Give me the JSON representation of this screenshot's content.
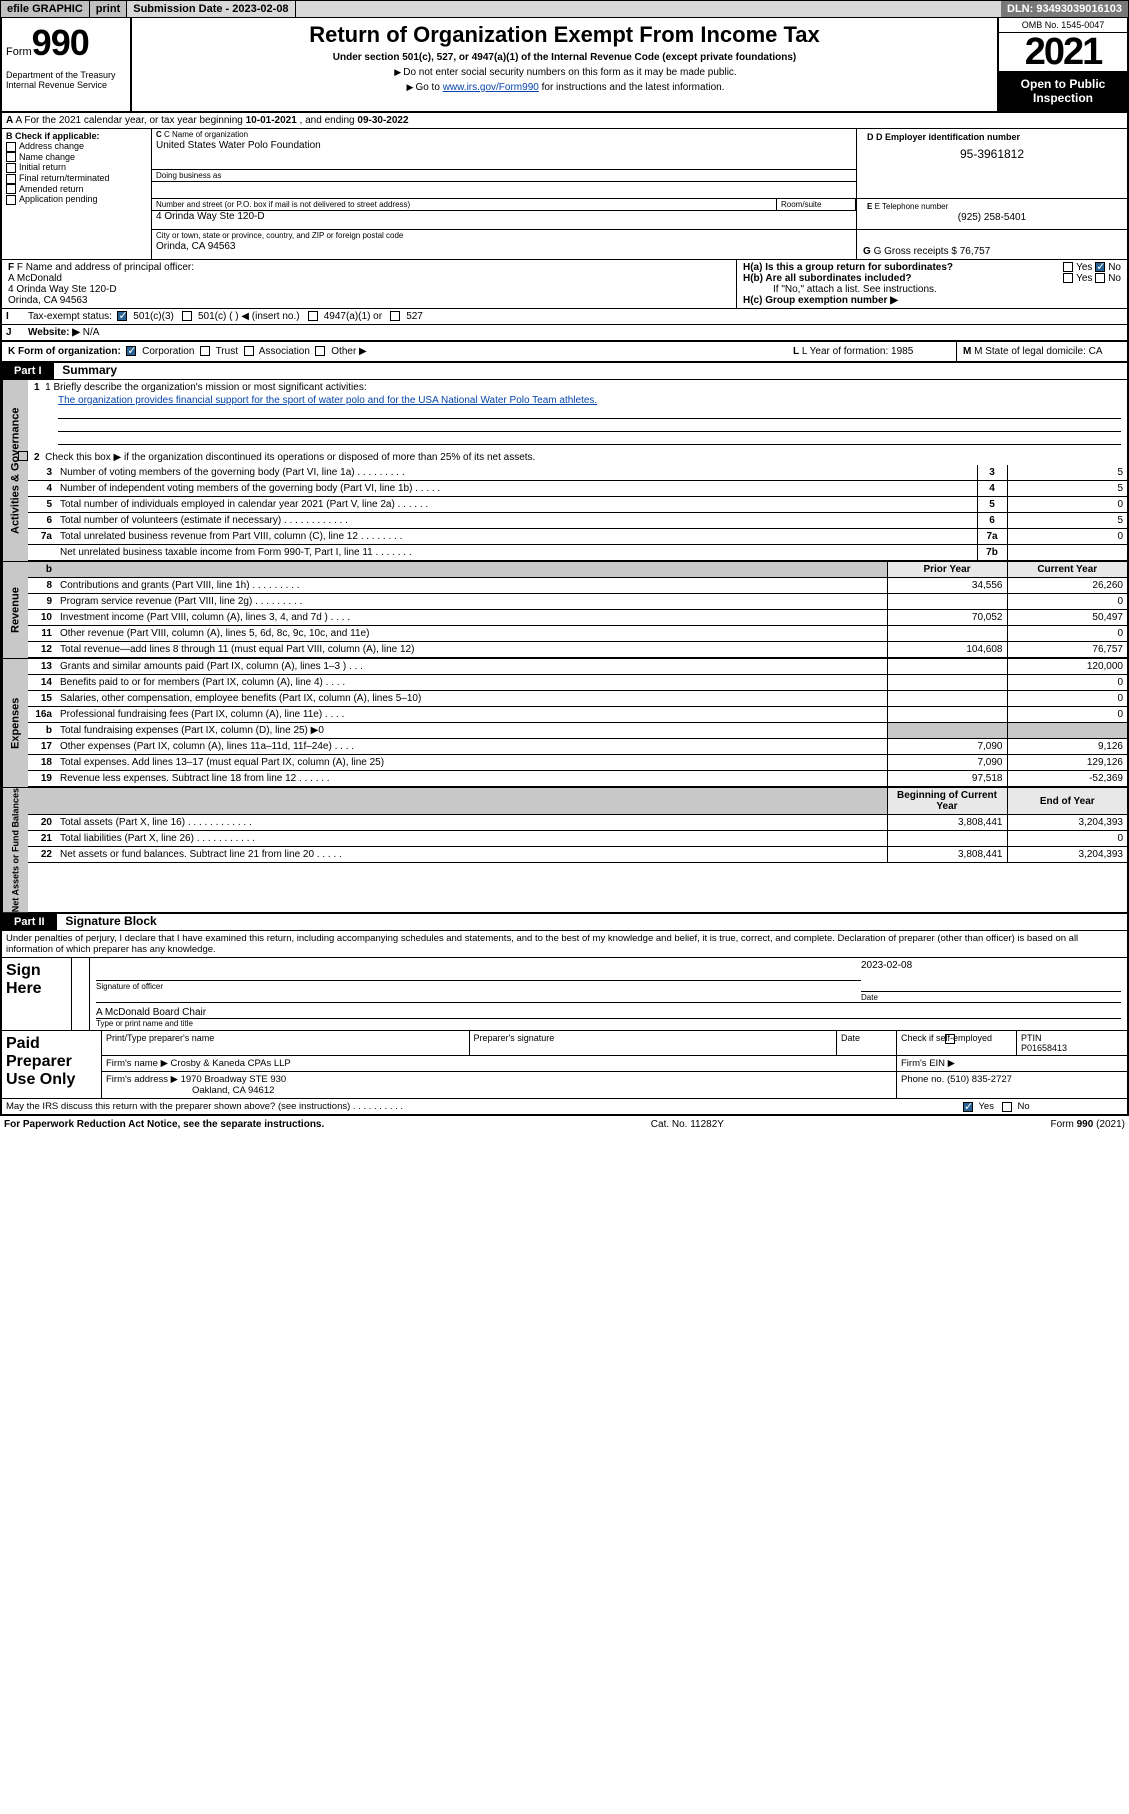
{
  "topbar": {
    "efile": "efile GRAPHIC",
    "print": "print",
    "subdate_label": "Submission Date - ",
    "subdate": "2023-02-08",
    "dln_label": "DLN: ",
    "dln": "93493039016103"
  },
  "header": {
    "form_small": "Form",
    "form_big": "990",
    "dept": "Department of the Treasury\nInternal Revenue Service",
    "title": "Return of Organization Exempt From Income Tax",
    "sub1": "Under section 501(c), 527, or 4947(a)(1) of the Internal Revenue Code (except private foundations)",
    "sub2a": "Do not enter social security numbers on this form as it may be made public.",
    "sub2b_pre": "Go to ",
    "sub2b_link": "www.irs.gov/Form990",
    "sub2b_post": " for instructions and the latest information.",
    "omb": "OMB No. 1545-0047",
    "year": "2021",
    "openpub": "Open to Public Inspection"
  },
  "a": {
    "label_pre": "A For the 2021 calendar year, or tax year beginning ",
    "begin": "10-01-2021",
    "mid": " , and ending ",
    "end": "09-30-2022"
  },
  "b": {
    "label": "B Check if applicable:",
    "items": [
      "Address change",
      "Name change",
      "Initial return",
      "Final return/terminated",
      "Amended return",
      "Application pending"
    ]
  },
  "c": {
    "name_label": "C Name of organization",
    "name": "United States Water Polo Foundation",
    "dba_label": "Doing business as",
    "addr_label": "Number and street (or P.O. box if mail is not delivered to street address)",
    "room_label": "Room/suite",
    "addr": "4 Orinda Way Ste 120-D",
    "city_label": "City or town, state or province, country, and ZIP or foreign postal code",
    "city": "Orinda, CA  94563"
  },
  "d": {
    "label": "D Employer identification number",
    "val": "95-3961812"
  },
  "e": {
    "label": "E Telephone number",
    "val": "(925) 258-5401"
  },
  "g": {
    "label": "G Gross receipts $ ",
    "val": "76,757"
  },
  "f": {
    "label": "F Name and address of principal officer:",
    "name": "A McDonald",
    "addr1": "4 Orinda Way Ste 120-D",
    "addr2": "Orinda, CA  94563"
  },
  "h": {
    "a": "H(a)  Is this a group return for subordinates?",
    "b": "H(b)  Are all subordinates included?",
    "note": "If \"No,\" attach a list. See instructions.",
    "c": "H(c)  Group exemption number ▶",
    "yes": "Yes",
    "no": "No"
  },
  "i": {
    "label": "Tax-exempt status:",
    "opts": [
      "501(c)(3)",
      "501(c) (  ) ◀ (insert no.)",
      "4947(a)(1) or",
      "527"
    ]
  },
  "j": {
    "label": "Website: ▶",
    "val": "N/A"
  },
  "k": {
    "label": "K Form of organization:",
    "opts": [
      "Corporation",
      "Trust",
      "Association",
      "Other ▶"
    ]
  },
  "l": {
    "label": "L Year of formation: ",
    "val": "1985"
  },
  "m": {
    "label": "M State of legal domicile: ",
    "val": "CA"
  },
  "part1": {
    "label": "Part I",
    "title": "Summary",
    "mission_q": "1   Briefly describe the organization's mission or most significant activities:",
    "mission": "The organization provides financial support for the sport of water polo and for the USA National Water Polo Team athletes.",
    "line2": "Check this box ▶        if the organization discontinued its operations or disposed of more than 25% of its net assets.",
    "vside1": "Activities & Governance",
    "vside2": "Revenue",
    "vside3": "Expenses",
    "vside4": "Net Assets or Fund Balances"
  },
  "govlines": [
    {
      "n": "3",
      "t": "Number of voting members of the governing body (Part VI, line 1a)    .    .    .    .    .    .    .    .    .",
      "b": "3",
      "v": "5"
    },
    {
      "n": "4",
      "t": "Number of independent voting members of the governing body (Part VI, line 1b)   .    .    .    .    .",
      "b": "4",
      "v": "5"
    },
    {
      "n": "5",
      "t": "Total number of individuals employed in calendar year 2021 (Part V, line 2a)    .    .    .    .    .    .",
      "b": "5",
      "v": "0"
    },
    {
      "n": "6",
      "t": "Total number of volunteers (estimate if necessary)    .    .    .    .    .    .    .    .    .    .    .    .",
      "b": "6",
      "v": "5"
    },
    {
      "n": "7a",
      "t": "Total unrelated business revenue from Part VIII, column (C), line 12    .    .    .    .    .    .    .    .",
      "b": "7a",
      "v": "0"
    },
    {
      "n": "",
      "t": "Net unrelated business taxable income from Form 990-T, Part I, line 11    .    .    .    .    .    .    .",
      "b": "7b",
      "v": ""
    }
  ],
  "twocol_hdr": {
    "prior": "Prior Year",
    "curr": "Current Year",
    "begin": "Beginning of Current Year",
    "end": "End of Year"
  },
  "revlines": [
    {
      "n": "8",
      "t": "Contributions and grants (Part VIII, line 1h)    .    .    .    .    .    .    .    .    .",
      "p": "34,556",
      "c": "26,260"
    },
    {
      "n": "9",
      "t": "Program service revenue (Part VIII, line 2g)    .    .    .    .    .    .    .    .    .",
      "p": "",
      "c": "0"
    },
    {
      "n": "10",
      "t": "Investment income (Part VIII, column (A), lines 3, 4, and 7d )    .    .    .    .",
      "p": "70,052",
      "c": "50,497"
    },
    {
      "n": "11",
      "t": "Other revenue (Part VIII, column (A), lines 5, 6d, 8c, 9c, 10c, and 11e)",
      "p": "",
      "c": "0"
    },
    {
      "n": "12",
      "t": "Total revenue—add lines 8 through 11 (must equal Part VIII, column (A), line 12)",
      "p": "104,608",
      "c": "76,757"
    }
  ],
  "explines": [
    {
      "n": "13",
      "t": "Grants and similar amounts paid (Part IX, column (A), lines 1–3 )    .    .    .",
      "p": "",
      "c": "120,000"
    },
    {
      "n": "14",
      "t": "Benefits paid to or for members (Part IX, column (A), line 4)    .    .    .    .",
      "p": "",
      "c": "0"
    },
    {
      "n": "15",
      "t": "Salaries, other compensation, employee benefits (Part IX, column (A), lines 5–10)",
      "p": "",
      "c": "0"
    },
    {
      "n": "16a",
      "t": "Professional fundraising fees (Part IX, column (A), line 11e)    .    .    .    .",
      "p": "",
      "c": "0"
    },
    {
      "n": "b",
      "t": "Total fundraising expenses (Part IX, column (D), line 25) ▶0",
      "shade": true
    },
    {
      "n": "17",
      "t": "Other expenses (Part IX, column (A), lines 11a–11d, 11f–24e)    .    .    .    .",
      "p": "7,090",
      "c": "9,126"
    },
    {
      "n": "18",
      "t": "Total expenses. Add lines 13–17 (must equal Part IX, column (A), line 25)",
      "p": "7,090",
      "c": "129,126"
    },
    {
      "n": "19",
      "t": "Revenue less expenses. Subtract line 18 from line 12   .    .    .    .    .    .",
      "p": "97,518",
      "c": "-52,369"
    }
  ],
  "netlines": [
    {
      "n": "20",
      "t": "Total assets (Part X, line 16)    .    .    .    .    .    .    .    .    .    .    .    .",
      "p": "3,808,441",
      "c": "3,204,393"
    },
    {
      "n": "21",
      "t": "Total liabilities (Part X, line 26)   .    .    .    .    .    .    .    .    .    .    .",
      "p": "",
      "c": "0"
    },
    {
      "n": "22",
      "t": "Net assets or fund balances. Subtract line 21 from line 20   .    .    .    .    .",
      "p": "3,808,441",
      "c": "3,204,393"
    }
  ],
  "part2": {
    "label": "Part II",
    "title": "Signature Block",
    "decl": "Under penalties of perjury, I declare that I have examined this return, including accompanying schedules and statements, and to the best of my knowledge and belief, it is true, correct, and complete. Declaration of preparer (other than officer) is based on all information of which preparer has any knowledge.",
    "sign_here": "Sign Here",
    "sig_officer": "Signature of officer",
    "sig_date": "2023-02-08",
    "date_lbl": "Date",
    "officer_name": "A McDonald  Board Chair",
    "officer_lbl": "Type or print name and title",
    "paid": "Paid Preparer Use Only",
    "prep_name_lbl": "Print/Type preparer's name",
    "prep_sig_lbl": "Preparer's signature",
    "check_lbl": "Check         if self-employed",
    "ptin_lbl": "PTIN",
    "ptin": "P01658413",
    "firm_name_lbl": "Firm's name    ▶ ",
    "firm_name": "Crosby & Kaneda CPAs LLP",
    "firm_ein_lbl": "Firm's EIN ▶",
    "firm_addr_lbl": "Firm's address ▶ ",
    "firm_addr1": "1970 Broadway STE 930",
    "firm_addr2": "Oakland, CA  94612",
    "firm_phone_lbl": "Phone no. ",
    "firm_phone": "(510) 835-2727",
    "may_irs": "May the IRS discuss this return with the preparer shown above? (see instructions)    .    .    .    .    .    .    .    .    .    .",
    "yes": "Yes",
    "no": "No"
  },
  "footer": {
    "left": "For Paperwork Reduction Act Notice, see the separate instructions.",
    "mid": "Cat. No. 11282Y",
    "right": "Form 990 (2021)"
  }
}
